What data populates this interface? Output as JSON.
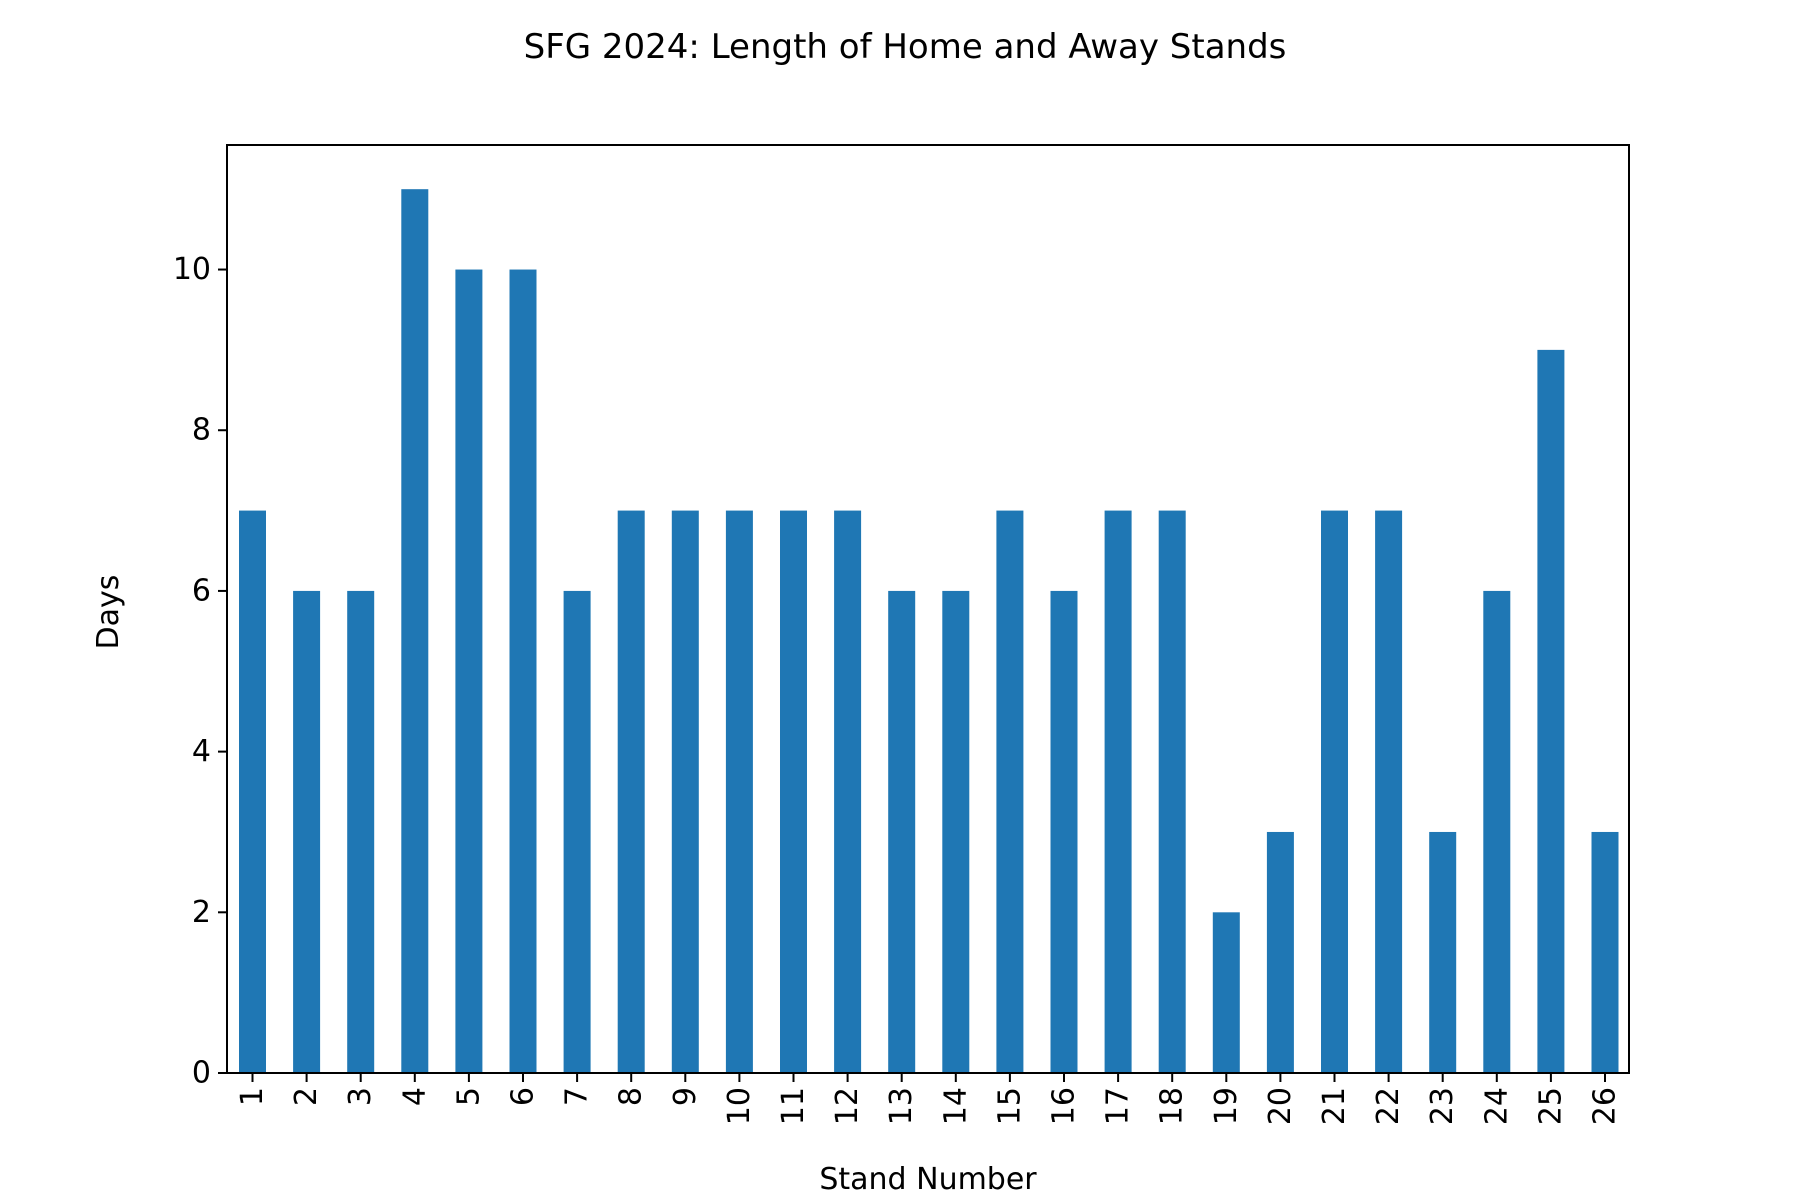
{
  "chart_data": {
    "type": "bar",
    "title": "SFG 2024: Length of Home and Away Stands",
    "xlabel": "Stand Number",
    "ylabel": "Days",
    "categories": [
      "1",
      "2",
      "3",
      "4",
      "5",
      "6",
      "7",
      "8",
      "9",
      "10",
      "11",
      "12",
      "13",
      "14",
      "15",
      "16",
      "17",
      "18",
      "19",
      "20",
      "21",
      "22",
      "23",
      "24",
      "25",
      "26"
    ],
    "series": [
      {
        "name": "Days",
        "values": [
          7,
          6,
          6,
          11,
          10,
          10,
          6,
          7,
          7,
          7,
          7,
          7,
          6,
          6,
          7,
          6,
          7,
          7,
          2,
          3,
          7,
          7,
          3,
          6,
          9,
          3
        ]
      }
    ],
    "ylim": [
      0,
      11.55
    ],
    "yticks": [
      0,
      2,
      4,
      6,
      8,
      10
    ],
    "grid": false,
    "legend": "none",
    "bar_color": "#1f77b4"
  }
}
